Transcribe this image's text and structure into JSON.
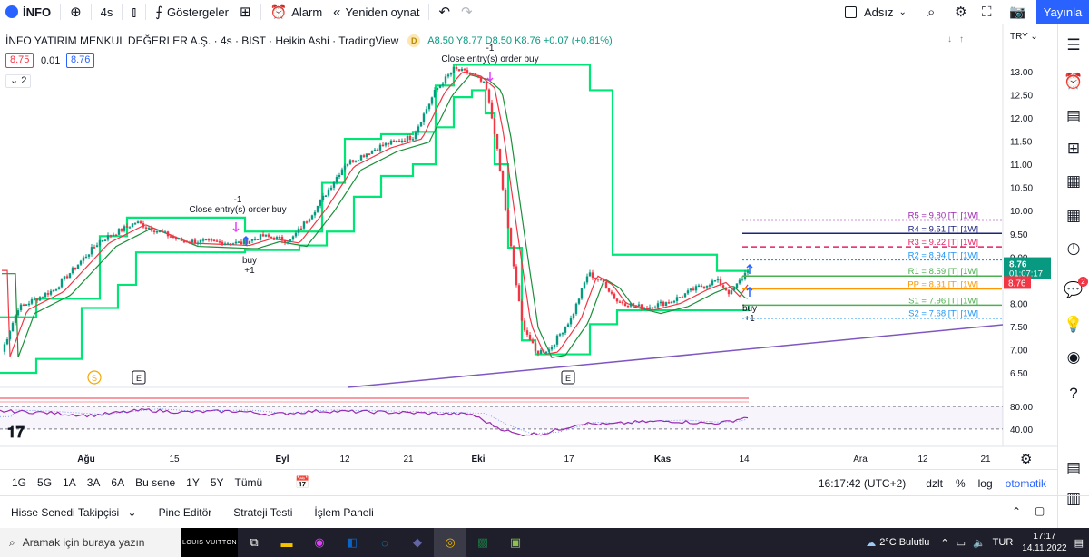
{
  "topbar": {
    "symbol": "İNFO",
    "interval": "4s",
    "indicators": "Göstergeler",
    "alarm": "Alarm",
    "replay": "Yeniden oynat",
    "layout_name": "Adsız",
    "publish": "Yayınla"
  },
  "legend": {
    "title": "İNFO YATIRIM MENKUL DEĞERLER A.Ş. · 4s · BIST · Heikin Ashi · TradingView",
    "ohlc": "A8.50  Y8.77  D8.50  K8.76  +0.07 (+0.81%)",
    "badge": "D",
    "sell_price": "8.75",
    "spread": "0.01",
    "buy_price": "8.76",
    "collapse": "2",
    "currency": "TRY"
  },
  "chart_data": {
    "type": "candlestick",
    "title": "İNFO YATIRIM MENKUL DEĞERLER A.Ş. · 4s · BIST · Heikin Ashi",
    "x_ticks": [
      "Ağu",
      "15",
      "Eyl",
      "12",
      "21",
      "Eki",
      "17",
      "Kas",
      "14",
      "Ara",
      "12",
      "21"
    ],
    "y_ticks": [
      "13.00",
      "12.50",
      "12.00",
      "11.50",
      "11.00",
      "10.50",
      "10.00",
      "9.50",
      "9.00",
      "8.50",
      "8.00",
      "7.50",
      "7.00",
      "6.50"
    ],
    "ylim": [
      6.4,
      13.2
    ],
    "last_price": "8.76",
    "countdown": "01:07:17",
    "close_price_label": "8.76",
    "pivot_levels": [
      {
        "label": "R5 = 9.80 [T] [1W]",
        "value": 9.8,
        "color": "#9c27b0"
      },
      {
        "label": "R4 = 9.51 [T] [1W]",
        "value": 9.51,
        "color": "#1a237e"
      },
      {
        "label": "R3 = 9.22 [T] [1W]",
        "value": 9.22,
        "color": "#e91e63"
      },
      {
        "label": "R2 = 8.94 [T] [1W]",
        "value": 8.94,
        "color": "#2196f3"
      },
      {
        "label": "R1 = 8.59 [T] [1W]",
        "value": 8.59,
        "color": "#4caf50"
      },
      {
        "label": "PP = 8.31 [T] [1W]",
        "value": 8.31,
        "color": "#ff9800"
      },
      {
        "label": "S1 = 7.96 [T] [1W]",
        "value": 7.96,
        "color": "#4caf50"
      },
      {
        "label": "S2 = 7.68 [T] [1W]",
        "value": 7.68,
        "color": "#2196f3"
      }
    ],
    "annotations": [
      {
        "text": "Close entry(s) order buy"
      },
      {
        "text": "-1"
      },
      {
        "text": "buy"
      },
      {
        "text": "+1"
      }
    ],
    "event_markers": [
      "S",
      "E",
      "E"
    ],
    "oscillator_ticks": [
      "80.00",
      "40.00"
    ]
  },
  "rangebar": {
    "ranges": [
      "1G",
      "5G",
      "1A",
      "3A",
      "6A",
      "Bu sene",
      "1Y",
      "5Y",
      "Tümü"
    ],
    "time": "16:17:42 (UTC+2)",
    "adj": "dzlt",
    "pct": "%",
    "log": "log",
    "auto": "otomatik"
  },
  "panels": {
    "screener": "Hisse Senedi Takipçisi",
    "pine": "Pine Editör",
    "strategy": "Strateji Testi",
    "trading": "İşlem Paneli"
  },
  "taskbar": {
    "search": "Aramak için buraya yazın",
    "weather": "2°C Bulutlu",
    "lang": "TUR",
    "time": "17:17",
    "date": "14.11.2022",
    "lv": "LOUIS VUITTON"
  },
  "notifications": "2",
  "colors": {
    "up": "#089981",
    "down": "#f23645",
    "channel": "#00e676",
    "ma_red": "#f23645",
    "ma_green": "#1b8f3a",
    "trend": "#7e57c2",
    "accent": "#2962ff"
  }
}
